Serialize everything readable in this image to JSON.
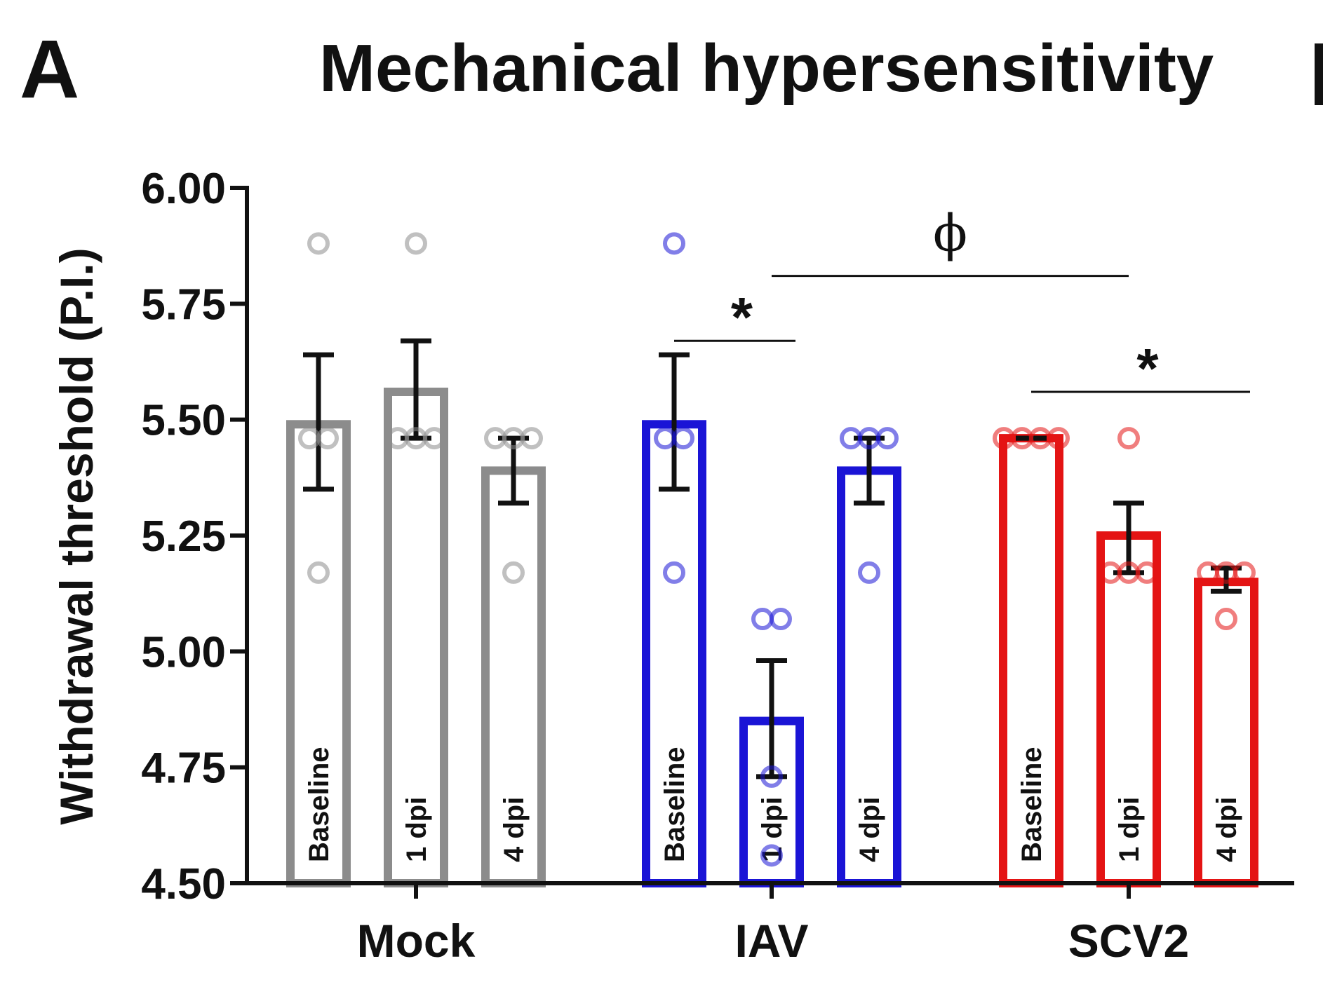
{
  "panel_letter": "A",
  "chart_data": {
    "type": "bar",
    "title": "Mechanical hypersensitivity",
    "xlabel": "",
    "ylabel": "Withdrawal threshold (P.I.)",
    "ylim": [
      4.5,
      6.0
    ],
    "yticks": [
      "4.50",
      "4.75",
      "5.00",
      "5.25",
      "5.50",
      "5.75",
      "6.00"
    ],
    "grid": false,
    "legend": "none",
    "colors": {
      "Mock": "#8c8c8c",
      "IAV": "#1a14d6",
      "SCV2": "#e41414"
    },
    "groups": [
      {
        "name": "Mock",
        "bars": [
          {
            "label": "Baseline",
            "value": 5.49,
            "err_low": 5.35,
            "err_high": 5.64,
            "points": [
              5.88,
              5.46,
              5.46,
              5.17
            ]
          },
          {
            "label": "1 dpi",
            "value": 5.56,
            "err_low": 5.46,
            "err_high": 5.67,
            "points": [
              5.88,
              5.46,
              5.46,
              5.46
            ]
          },
          {
            "label": "4 dpi",
            "value": 5.39,
            "err_low": 5.32,
            "err_high": 5.46,
            "points": [
              5.46,
              5.46,
              5.46,
              5.17
            ]
          }
        ]
      },
      {
        "name": "IAV",
        "bars": [
          {
            "label": "Baseline",
            "value": 5.49,
            "err_low": 5.35,
            "err_high": 5.64,
            "points": [
              5.88,
              5.46,
              5.46,
              5.17
            ]
          },
          {
            "label": "1 dpi",
            "value": 4.85,
            "err_low": 4.73,
            "err_high": 4.98,
            "points": [
              5.07,
              5.07,
              4.73,
              4.56
            ]
          },
          {
            "label": "4 dpi",
            "value": 5.39,
            "err_low": 5.32,
            "err_high": 5.46,
            "points": [
              5.46,
              5.46,
              5.46,
              5.17
            ]
          }
        ]
      },
      {
        "name": "SCV2",
        "bars": [
          {
            "label": "Baseline",
            "value": 5.46,
            "err_low": 5.46,
            "err_high": 5.46,
            "points": [
              5.46,
              5.46,
              5.46,
              5.46
            ]
          },
          {
            "label": "1 dpi",
            "value": 5.25,
            "err_low": 5.17,
            "err_high": 5.32,
            "points": [
              5.46,
              5.17,
              5.17,
              5.17
            ]
          },
          {
            "label": "4 dpi",
            "value": 5.15,
            "err_low": 5.13,
            "err_high": 5.18,
            "points": [
              5.17,
              5.17,
              5.17,
              5.07
            ]
          }
        ]
      }
    ],
    "annotations": [
      {
        "text": "*",
        "from": {
          "group": 1,
          "bar": 0
        },
        "to": {
          "group": 1,
          "bar": 1
        },
        "y": 5.67
      },
      {
        "text": "ϕ",
        "from": {
          "group": 1,
          "bar": 1
        },
        "to": {
          "group": 2,
          "bar": 1
        },
        "y": 5.81
      },
      {
        "text": "*",
        "from": {
          "group": 2,
          "bar": 0
        },
        "to": {
          "group": 2,
          "bar": 2
        },
        "y": 5.56
      }
    ]
  }
}
